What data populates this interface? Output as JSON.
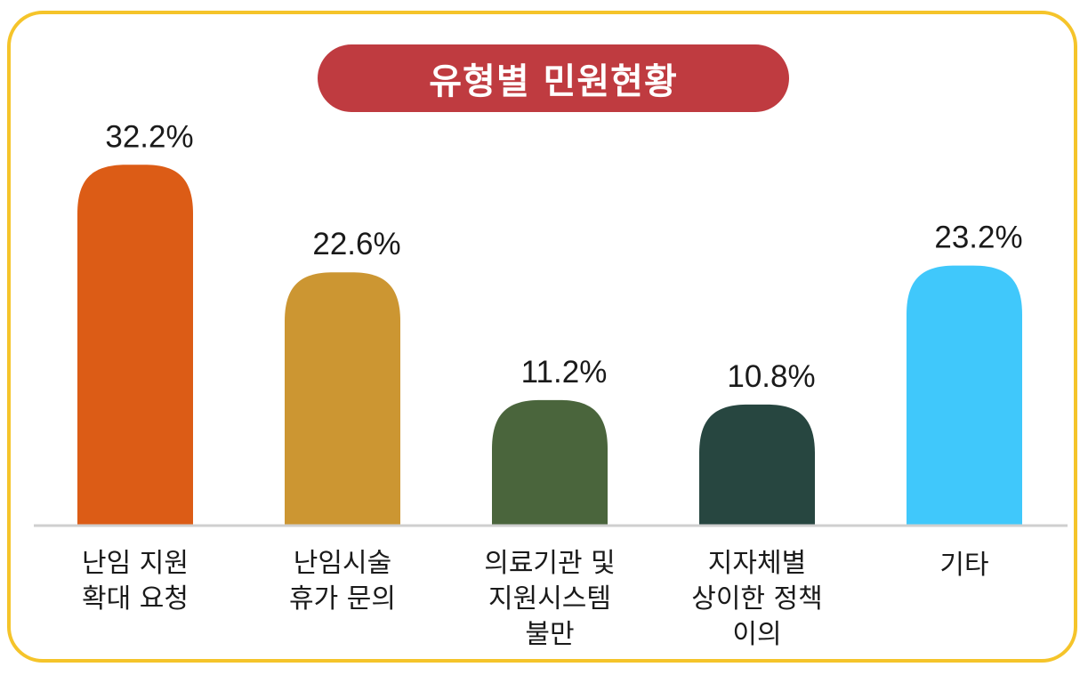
{
  "chart_data": {
    "type": "bar",
    "title": "유형별 민원현황",
    "categories": [
      "난임 지원\n확대 요청",
      "난임시술\n휴가 문의",
      "의료기관 및\n지원시스템\n불만",
      "지자체별\n상이한 정책\n이의",
      "기타"
    ],
    "values": [
      32.2,
      22.6,
      11.2,
      10.8,
      23.2
    ],
    "value_labels": [
      "32.2%",
      "22.6%",
      "11.2%",
      "10.8%",
      "23.2%"
    ],
    "colors": [
      "#dc5c16",
      "#cc9632",
      "#4a653c",
      "#274640",
      "#40c8fb"
    ],
    "ylim": [
      0,
      35
    ],
    "grid": false,
    "legend": "none"
  },
  "frame": {
    "border_color": "#f5c42a",
    "title_bg": "#bf3b40"
  }
}
